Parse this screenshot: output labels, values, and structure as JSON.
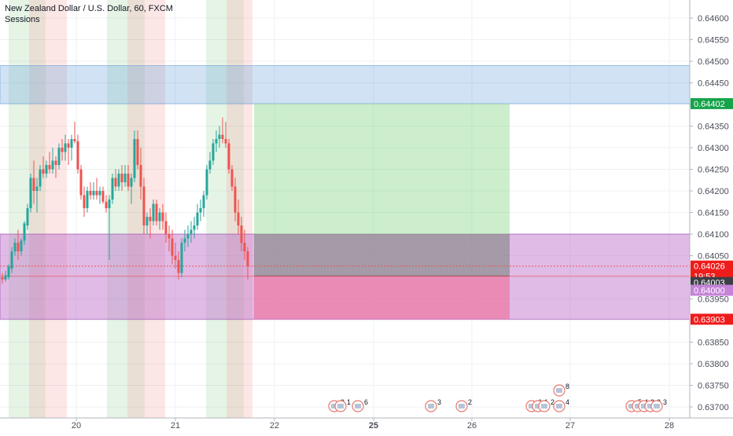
{
  "header": {
    "symbol_title": "New Zealand Dollar / U.S. Dollar, 60, FXCM",
    "indicator": "Sessions"
  },
  "colors": {
    "up": "#26a69a",
    "down": "#ef5350",
    "grid": "#eef0f3",
    "axis_text": "#4a4f5b",
    "green_label": "#16a34a",
    "red_label": "#ef1c1c",
    "dark_label": "#3d3f46",
    "purple_label": "#c683d8"
  },
  "x_axis": {
    "ticks": [
      "20",
      "21",
      "22",
      "25",
      "26",
      "27",
      "28"
    ],
    "bold_ticks": [
      "25"
    ]
  },
  "y_axis": {
    "ticks": [
      "0.64600",
      "0.64550",
      "0.64500",
      "0.64450",
      "0.64400",
      "0.64350",
      "0.64300",
      "0.64250",
      "0.64200",
      "0.64150",
      "0.64100",
      "0.64050",
      "0.64000",
      "0.63950",
      "0.63900",
      "0.63850",
      "0.63800",
      "0.63750",
      "0.63700"
    ],
    "range": [
      0.6369,
      0.6465
    ]
  },
  "price_labels": [
    {
      "text": "0.64402",
      "kind": "green_label",
      "price": 0.64402
    },
    {
      "text": "0.64026",
      "kind": "red_label",
      "price": 0.64026
    },
    {
      "text": "19:53",
      "kind": "red_label",
      "price": 0.64003
    },
    {
      "text": "0.64003",
      "kind": "dark_label",
      "price": 0.63988
    },
    {
      "text": "0.64000",
      "kind": "purple_label",
      "price": 0.6397
    },
    {
      "text": "0.63903",
      "kind": "red_label",
      "price": 0.63903
    }
  ],
  "zones": {
    "blue_band": {
      "top": 0.6449,
      "bottom": 0.64402
    },
    "purple_band": {
      "top": 0.641,
      "bottom": 0.63903
    },
    "position_tool": {
      "entry": 0.64003,
      "target": 0.64402,
      "stop": 0.63903,
      "gray_top": 0.641
    }
  },
  "events": [
    {
      "group": "a",
      "labels": [
        "3",
        "1"
      ]
    },
    {
      "group": "b",
      "labels": [
        "6"
      ]
    },
    {
      "group": "c",
      "labels": [
        "3"
      ]
    },
    {
      "group": "d",
      "labels": [
        "2"
      ]
    },
    {
      "group": "e",
      "labels": [
        "6",
        "1",
        "2"
      ]
    },
    {
      "group": "f",
      "labels": [
        "4"
      ]
    },
    {
      "group": "g",
      "labels": [
        "8"
      ]
    },
    {
      "group": "h",
      "labels": [
        "5",
        "4",
        "2",
        "3",
        "3"
      ]
    }
  ]
}
